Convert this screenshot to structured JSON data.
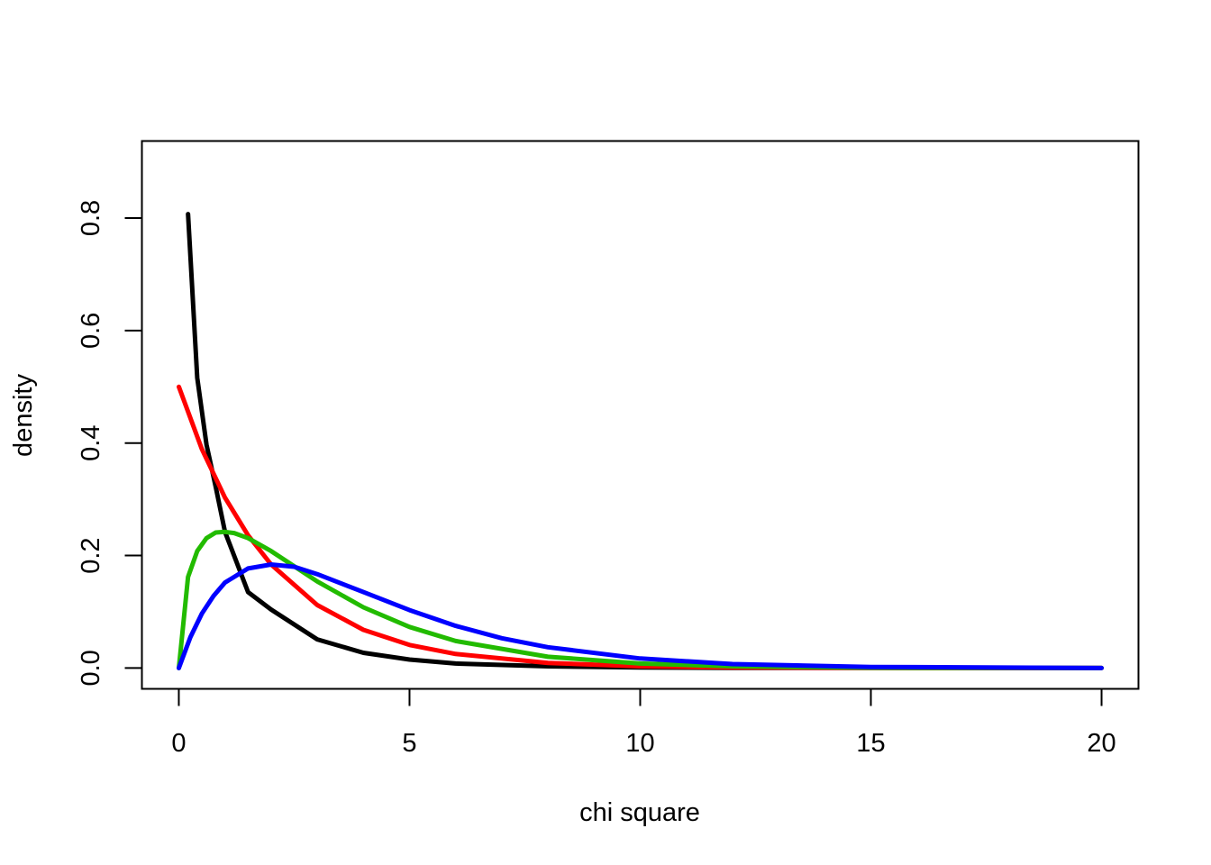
{
  "chart_data": {
    "type": "line",
    "xlabel": "chi square",
    "ylabel": "density",
    "xlim": [
      -0.8,
      20.8
    ],
    "ylim": [
      -0.037,
      0.937
    ],
    "x_ticks": [
      0,
      5,
      10,
      15,
      20
    ],
    "x_tick_labels": [
      "0",
      "5",
      "10",
      "15",
      "20"
    ],
    "y_ticks": [
      0.0,
      0.2,
      0.4,
      0.6,
      0.8
    ],
    "y_tick_labels": [
      "0.0",
      "0.2",
      "0.4",
      "0.6",
      "0.8"
    ],
    "grid": false,
    "series": [
      {
        "color": "#000000",
        "x": [
          0.2,
          0.4,
          0.6,
          0.8,
          1.0,
          1.5,
          2.0,
          3.0,
          4.0,
          5.0,
          6.0,
          8.0,
          10.0,
          12.0,
          15.0,
          20.0
        ],
        "values": [
          0.807,
          0.516,
          0.397,
          0.322,
          0.242,
          0.135,
          0.104,
          0.051,
          0.027,
          0.015,
          0.008,
          0.003,
          0.001,
          0.0003,
          0.0001,
          0.0
        ]
      },
      {
        "color": "#ff0000",
        "x": [
          0,
          0.5,
          1,
          1.5,
          2,
          3,
          4,
          5,
          6,
          8,
          10,
          12,
          15,
          20
        ],
        "values": [
          0.5,
          0.389,
          0.303,
          0.236,
          0.184,
          0.112,
          0.068,
          0.041,
          0.025,
          0.009,
          0.003,
          0.001,
          0.0003,
          0.0
        ]
      },
      {
        "color": "#22bb00",
        "x": [
          0,
          0.2,
          0.4,
          0.6,
          0.8,
          1.0,
          1.2,
          1.5,
          2,
          3,
          4,
          5,
          6,
          8,
          10,
          12,
          15,
          20
        ],
        "values": [
          0,
          0.162,
          0.208,
          0.231,
          0.241,
          0.242,
          0.24,
          0.231,
          0.208,
          0.154,
          0.108,
          0.073,
          0.048,
          0.02,
          0.008,
          0.003,
          0.0007,
          0.0
        ]
      },
      {
        "color": "#0000ff",
        "x": [
          0,
          0.25,
          0.5,
          0.75,
          1,
          1.5,
          2,
          2.5,
          3,
          4,
          5,
          6,
          7,
          8,
          10,
          12,
          15,
          20
        ],
        "values": [
          0,
          0.055,
          0.097,
          0.128,
          0.152,
          0.177,
          0.184,
          0.18,
          0.167,
          0.135,
          0.103,
          0.075,
          0.053,
          0.037,
          0.017,
          0.007,
          0.002,
          0.0
        ]
      }
    ]
  }
}
